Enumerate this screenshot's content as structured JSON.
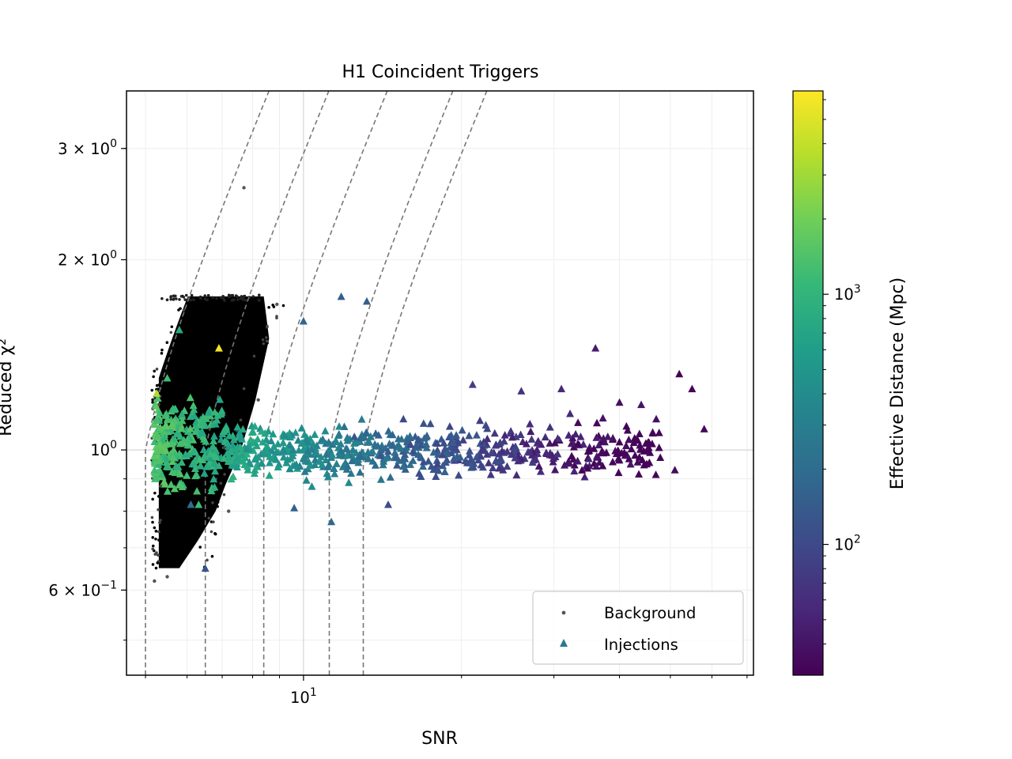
{
  "chart_data": {
    "type": "scatter",
    "title": "H1 Coincident Triggers",
    "xlabel": "SNR",
    "ylabel": "Reduced χ²",
    "xscale": "log",
    "yscale": "log",
    "xlim": [
      4.6,
      72
    ],
    "ylim": [
      0.44,
      3.7
    ],
    "x_tick_labels": [
      {
        "value": 10,
        "base": "10",
        "exp": "1"
      }
    ],
    "y_tick_labels": [
      {
        "value": 3,
        "mant": "3",
        "base": "10",
        "exp": "0"
      },
      {
        "value": 2,
        "mant": "2",
        "base": "10",
        "exp": "0"
      },
      {
        "value": 1,
        "mant": "",
        "base": "10",
        "exp": "0"
      },
      {
        "value": 0.6,
        "mant": "6",
        "base": "10",
        "exp": "−1"
      }
    ],
    "grid": true,
    "legend_position": "lower-right",
    "legend": [
      {
        "label": "Background",
        "marker": "dot",
        "color": "#555555"
      },
      {
        "label": "Injections",
        "marker": "triangle",
        "color": "#2a788e"
      }
    ],
    "colorbar": {
      "label": "Effective Distance (Mpc)",
      "scale": "log",
      "range": [
        30,
        6500
      ],
      "tick_labels": [
        {
          "value": 100,
          "base": "10",
          "exp": "2"
        },
        {
          "value": 1000,
          "base": "10",
          "exp": "3"
        }
      ],
      "colormap": [
        "#440154",
        "#482878",
        "#3e4989",
        "#31688e",
        "#26828e",
        "#1f9e89",
        "#35b779",
        "#6ece58",
        "#b5de2b",
        "#fde725"
      ]
    },
    "background_region": {
      "description_free": true,
      "snr_min": 5.3,
      "snr_knee": 6.6,
      "snr_max": 8.4,
      "chisq_min": 0.65,
      "chisq_max": 1.75
    },
    "background_outliers": [
      [
        7.7,
        2.6
      ],
      [
        5.2,
        0.62
      ],
      [
        5.5,
        0.63
      ],
      [
        8.9,
        1.7
      ],
      [
        8.2,
        1.2
      ],
      [
        7.2,
        0.8
      ]
    ],
    "injections": [
      {
        "x": 6.9,
        "y": 1.45,
        "d": 6000
      },
      {
        "x": 5.25,
        "y": 1.23,
        "d": 3500
      },
      {
        "x": 5.8,
        "y": 1.55,
        "d": 800
      },
      {
        "x": 5.5,
        "y": 1.3,
        "d": 1200
      },
      {
        "x": 11.8,
        "y": 1.75,
        "d": 150
      },
      {
        "x": 13.2,
        "y": 1.72,
        "d": 150
      },
      {
        "x": 10,
        "y": 1.6,
        "d": 170
      },
      {
        "x": 6.5,
        "y": 0.65,
        "d": 120
      },
      {
        "x": 6.1,
        "y": 0.82,
        "d": 200
      },
      {
        "x": 9.6,
        "y": 0.81,
        "d": 160
      },
      {
        "x": 11.3,
        "y": 0.77,
        "d": 180
      },
      {
        "x": 14.5,
        "y": 0.82,
        "d": 110
      },
      {
        "x": 52,
        "y": 1.32,
        "d": 30
      },
      {
        "x": 55,
        "y": 1.25,
        "d": 32
      },
      {
        "x": 58,
        "y": 1.08,
        "d": 33
      },
      {
        "x": 51,
        "y": 0.93,
        "d": 35
      },
      {
        "x": 36,
        "y": 1.45,
        "d": 45
      },
      {
        "x": 40,
        "y": 1.19,
        "d": 38
      },
      {
        "x": 44,
        "y": 1.18,
        "d": 40
      },
      {
        "x": 47,
        "y": 1.12,
        "d": 38
      },
      {
        "x": 42,
        "y": 0.95,
        "d": 40
      },
      {
        "x": 38,
        "y": 1.05,
        "d": 42
      },
      {
        "x": 21,
        "y": 1.27,
        "d": 80
      },
      {
        "x": 26,
        "y": 1.24,
        "d": 65
      },
      {
        "x": 31,
        "y": 1.25,
        "d": 55
      },
      {
        "x": 18,
        "y": 0.95,
        "d": 90
      },
      {
        "x": 24,
        "y": 0.93,
        "d": 70
      },
      {
        "x": 29,
        "y": 0.99,
        "d": 55
      },
      {
        "x": 33,
        "y": 1.06,
        "d": 50
      },
      {
        "x": 16,
        "y": 1.02,
        "d": 100
      },
      {
        "x": 19,
        "y": 1.09,
        "d": 90
      },
      {
        "x": 22,
        "y": 1.0,
        "d": 75
      },
      {
        "x": 27,
        "y": 1.1,
        "d": 60
      },
      {
        "x": 12.5,
        "y": 1.05,
        "d": 130
      },
      {
        "x": 14,
        "y": 0.98,
        "d": 115
      },
      {
        "x": 15.5,
        "y": 1.12,
        "d": 105
      }
    ]
  }
}
